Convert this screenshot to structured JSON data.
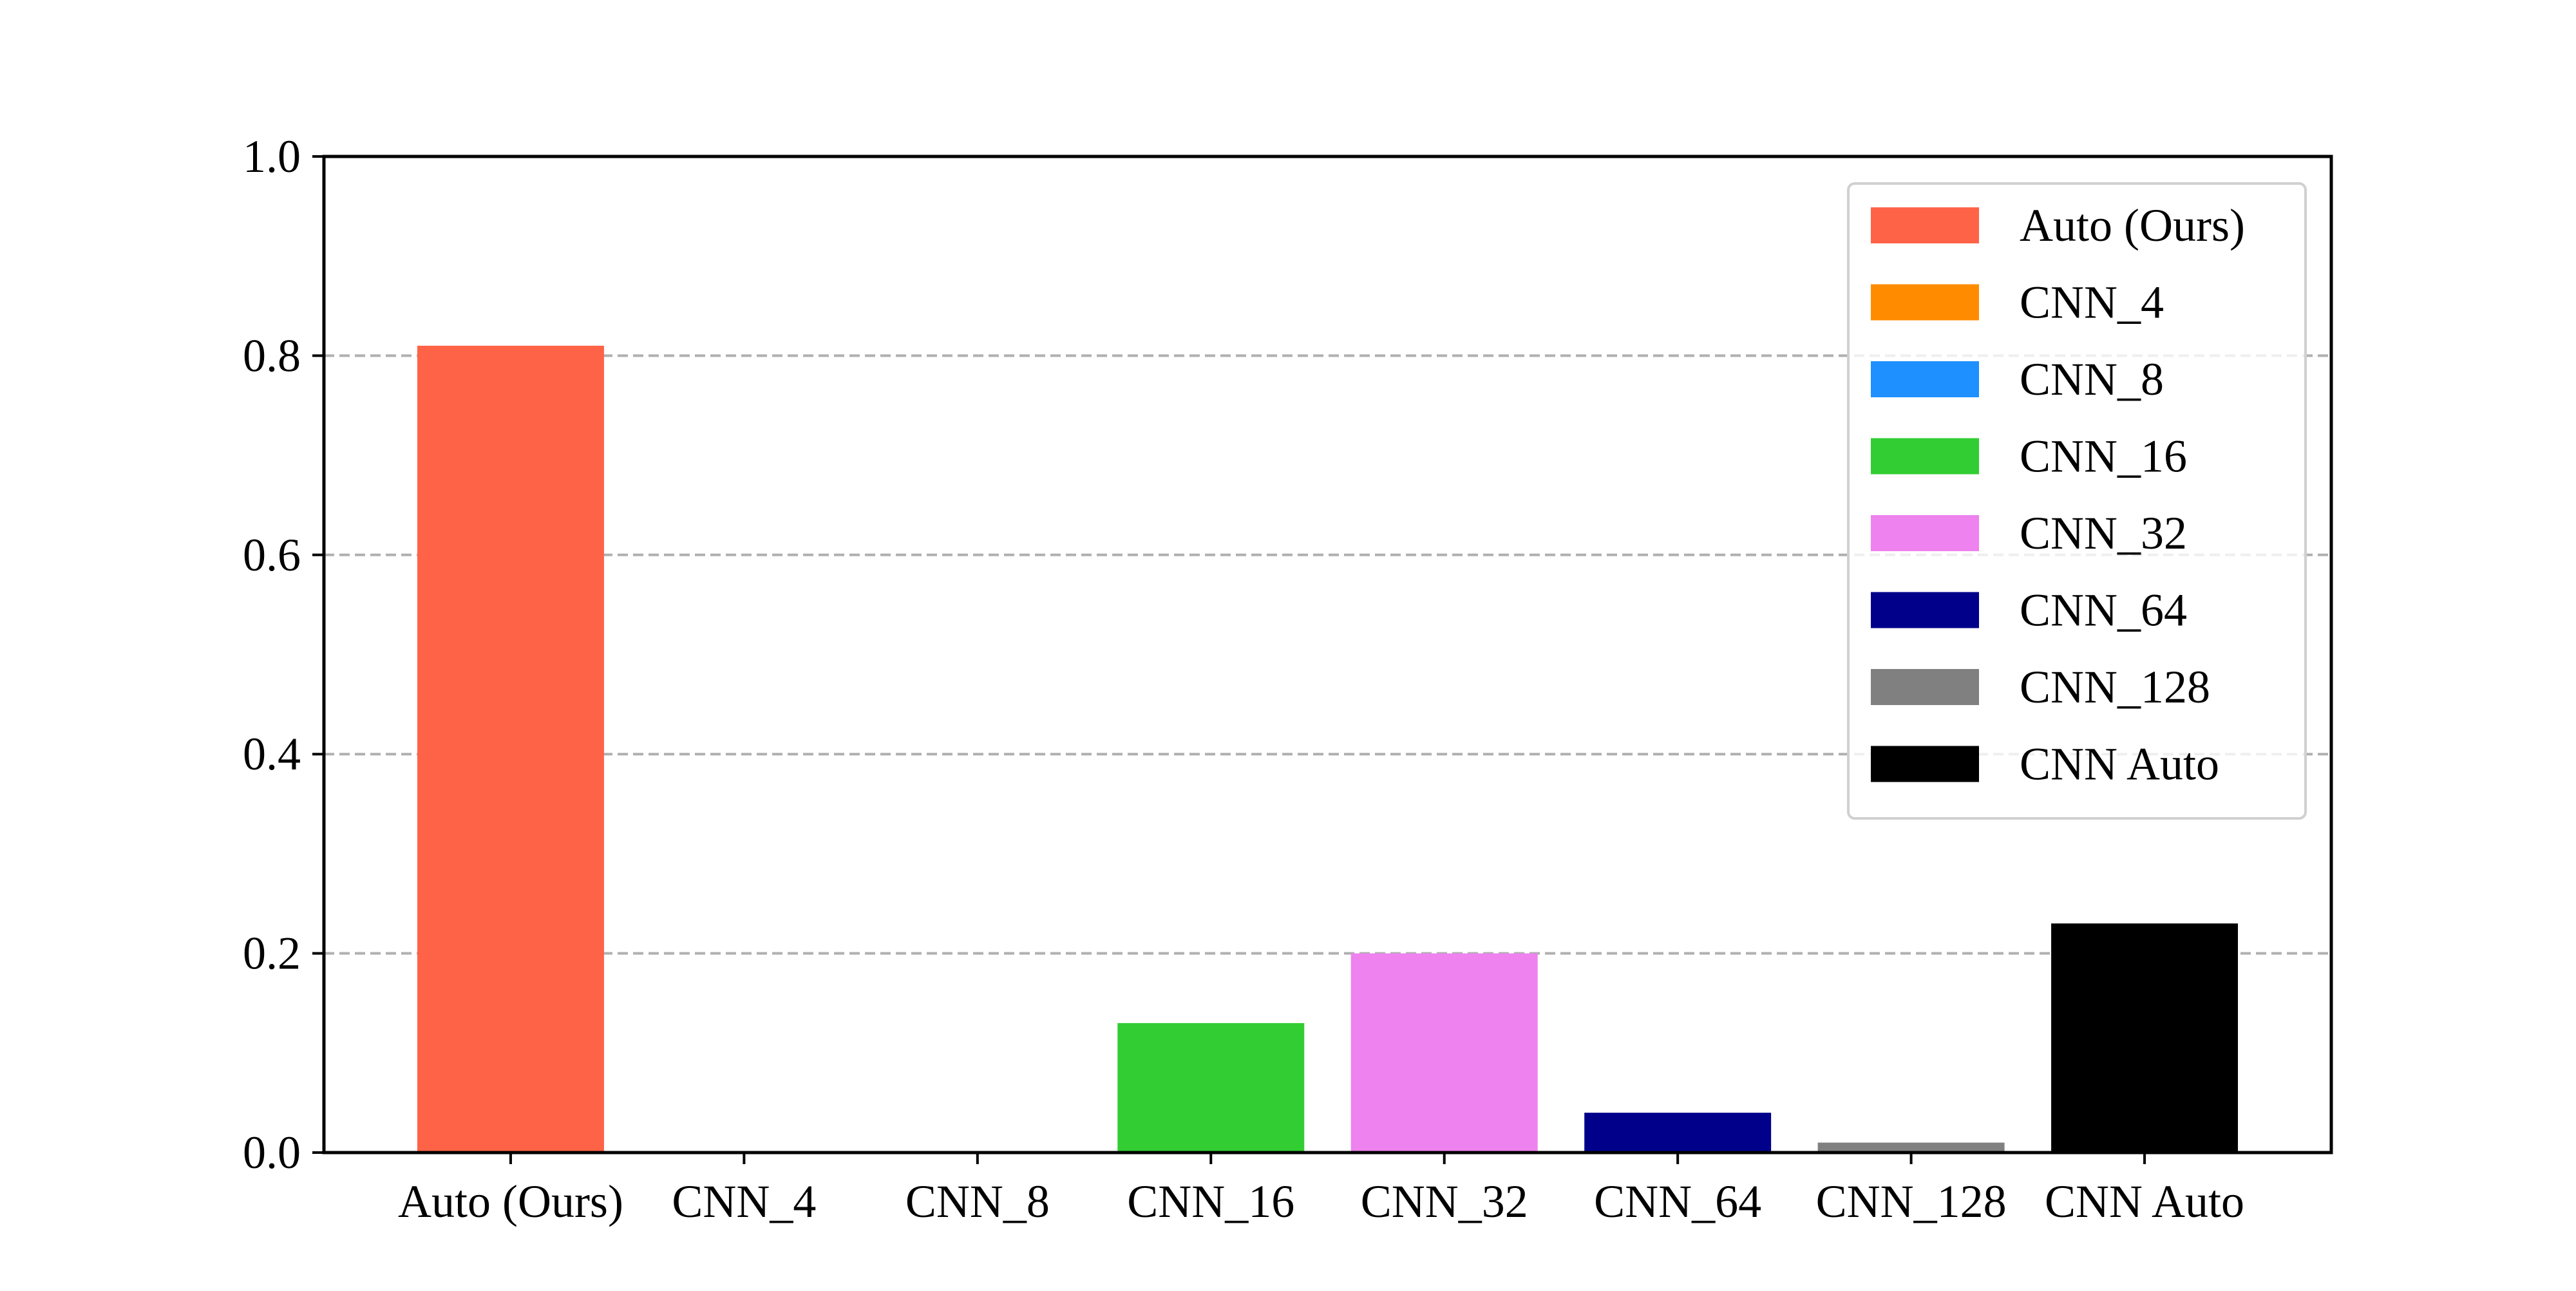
{
  "chart_data": {
    "type": "bar",
    "title": "",
    "xlabel": "",
    "ylabel": "",
    "ylim": [
      0,
      1.0
    ],
    "yticks": [
      "0.0",
      "0.2",
      "0.4",
      "0.6",
      "0.8",
      "1.0"
    ],
    "grid": "y-dashed",
    "legend_position": "top-right",
    "categories": [
      "Auto (Ours)",
      "CNN_4",
      "CNN_8",
      "CNN_16",
      "CNN_32",
      "CNN_64",
      "CNN_128",
      "CNN Auto"
    ],
    "values": [
      0.81,
      0.0,
      0.0,
      0.13,
      0.2,
      0.04,
      0.01,
      0.23
    ],
    "colors": [
      "#ff6347",
      "#ff8c00",
      "#1e90ff",
      "#32cd32",
      "#ee82ee",
      "#00008b",
      "#808080",
      "#000000"
    ],
    "legend": [
      "Auto (Ours)",
      "CNN_4",
      "CNN_8",
      "CNN_16",
      "CNN_32",
      "CNN_64",
      "CNN_128",
      "CNN Auto"
    ]
  }
}
